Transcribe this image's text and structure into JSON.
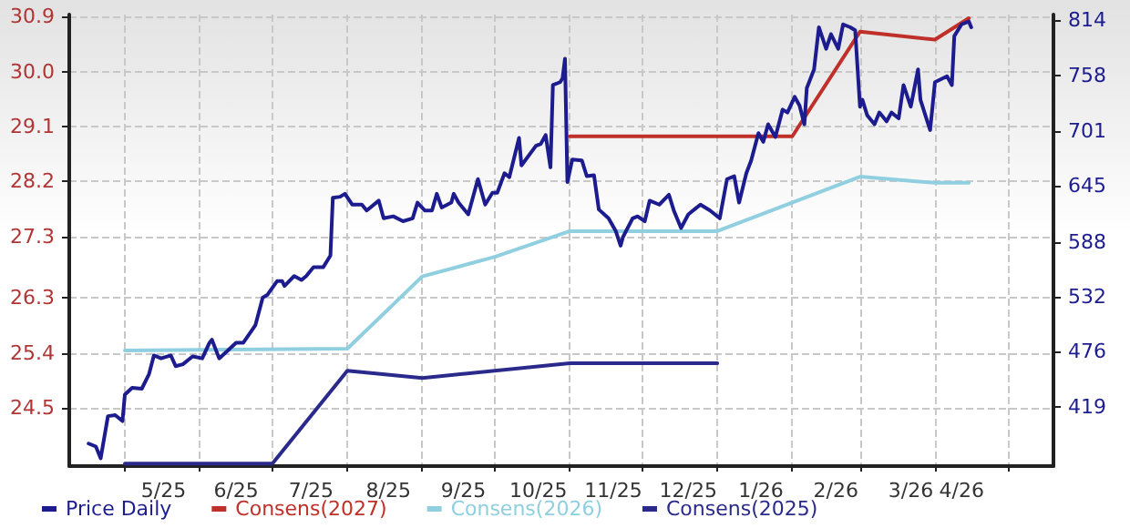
{
  "chart_data": {
    "type": "line",
    "xlim": [
      "2025-04-08",
      "2026-05-20"
    ],
    "xticks": [
      {
        "value": "2025-05-01",
        "label": null
      },
      {
        "value": "2025-05-17",
        "label": "5/25"
      },
      {
        "value": "2025-06-01",
        "label": null
      },
      {
        "value": "2025-06-16",
        "label": "6/25"
      },
      {
        "value": "2025-07-01",
        "label": null
      },
      {
        "value": "2025-07-17",
        "label": "7/25"
      },
      {
        "value": "2025-08-01",
        "label": null
      },
      {
        "value": "2025-08-18",
        "label": "8/25"
      },
      {
        "value": "2025-09-01",
        "label": null
      },
      {
        "value": "2025-09-18",
        "label": "9/25"
      },
      {
        "value": "2025-10-01",
        "label": null
      },
      {
        "value": "2025-10-19",
        "label": "10/25"
      },
      {
        "value": "2025-11-01",
        "label": null
      },
      {
        "value": "2025-11-19",
        "label": "11/25"
      },
      {
        "value": "2025-12-01",
        "label": null
      },
      {
        "value": "2025-12-20",
        "label": "12/25"
      },
      {
        "value": "2026-01-01",
        "label": null
      },
      {
        "value": "2026-01-19",
        "label": "1/26"
      },
      {
        "value": "2026-02-01",
        "label": null
      },
      {
        "value": "2026-02-19",
        "label": "2/26"
      },
      {
        "value": "2026-03-01",
        "label": null
      },
      {
        "value": "2026-03-22",
        "label": "3/26"
      },
      {
        "value": "2026-04-01",
        "label": null
      },
      {
        "value": "2026-04-12",
        "label": "4/26"
      },
      {
        "value": "2026-05-01",
        "label": null
      }
    ],
    "ylim": [
      23.55,
      30.93
    ],
    "yticks": [
      24.5,
      25.4,
      26.3,
      27.3,
      28.2,
      29.1,
      {
        "value": 30,
        "label": "30.0"
      },
      30.9
    ],
    "y2lim": [
      359,
      820
    ],
    "y2ticks": [
      419,
      476,
      532,
      588,
      645,
      701,
      758,
      814
    ],
    "grid": true,
    "legend": "bottom left",
    "marker": "none",
    "line_style": "solid",
    "series": [
      {
        "name": "Price Daily",
        "color": "#1c1c8f",
        "axis": "y2",
        "x": [
          "2025-04-16",
          "2025-04-19",
          "2025-04-21",
          "2025-04-24",
          "2025-04-27",
          "2025-04-30",
          "2025-05-01",
          "2025-05-04",
          "2025-05-08",
          "2025-05-11",
          "2025-05-13",
          "2025-05-16",
          "2025-05-20",
          "2025-05-22",
          "2025-05-25",
          "2025-05-29",
          "2025-06-02",
          "2025-06-05",
          "2025-06-06",
          "2025-06-09",
          "2025-06-13",
          "2025-06-16",
          "2025-06-19",
          "2025-06-24",
          "2025-06-27",
          "2025-06-29",
          "2025-07-03",
          "2025-07-05",
          "2025-07-06",
          "2025-07-10",
          "2025-07-13",
          "2025-07-15",
          "2025-07-18",
          "2025-07-22",
          "2025-07-25",
          "2025-07-26",
          "2025-07-29",
          "2025-07-31",
          "2025-08-03",
          "2025-08-07",
          "2025-08-09",
          "2025-08-14",
          "2025-08-16",
          "2025-08-20",
          "2025-08-24",
          "2025-08-28",
          "2025-08-30",
          "2025-09-02",
          "2025-09-05",
          "2025-09-07",
          "2025-09-09",
          "2025-09-13",
          "2025-09-14",
          "2025-09-16",
          "2025-09-20",
          "2025-09-24",
          "2025-09-27",
          "2025-09-30",
          "2025-10-02",
          "2025-10-05",
          "2025-10-07",
          "2025-10-11",
          "2025-10-12",
          "2025-10-18",
          "2025-10-20",
          "2025-10-22",
          "2025-10-24",
          "2025-10-25",
          "2025-10-28",
          "2025-10-29",
          "2025-10-30",
          "2025-10-31",
          "2025-11-02",
          "2025-11-06",
          "2025-11-08",
          "2025-11-11",
          "2025-11-13",
          "2025-11-17",
          "2025-11-20",
          "2025-11-22",
          "2025-11-23",
          "2025-11-27",
          "2025-11-29",
          "2025-12-02",
          "2025-12-04",
          "2025-12-08",
          "2025-12-12",
          "2025-12-14",
          "2025-12-17",
          "2025-12-20",
          "2025-12-25",
          "2025-12-29",
          "2026-01-02",
          "2026-01-05",
          "2026-01-08",
          "2026-01-10",
          "2026-01-13",
          "2026-01-15",
          "2026-01-18",
          "2026-01-20",
          "2026-01-22",
          "2026-01-25",
          "2026-01-28",
          "2026-01-30",
          "2026-02-02",
          "2026-02-04",
          "2026-02-06",
          "2026-02-07",
          "2026-02-10",
          "2026-02-12",
          "2026-02-15",
          "2026-02-17",
          "2026-02-20",
          "2026-02-22",
          "2026-02-25",
          "2026-02-27",
          "2026-03-01",
          "2026-03-02",
          "2026-03-04",
          "2026-03-07",
          "2026-03-09",
          "2026-03-12",
          "2026-03-14",
          "2026-03-17",
          "2026-03-19",
          "2026-03-22",
          "2026-03-25",
          "2026-03-26",
          "2026-03-30",
          "2026-04-01",
          "2026-04-06",
          "2026-04-08",
          "2026-04-09",
          "2026-04-12",
          "2026-04-15",
          "2026-04-16"
        ],
        "values": [
          382,
          379,
          367,
          410,
          411,
          405,
          432,
          439,
          438,
          453,
          472,
          469,
          472,
          461,
          463,
          471,
          469,
          485,
          488,
          469,
          478,
          485,
          485,
          503,
          531,
          534,
          548,
          548,
          543,
          553,
          549,
          553,
          562,
          562,
          574,
          633,
          634,
          637,
          626,
          626,
          620,
          630,
          612,
          614,
          609,
          612,
          628,
          620,
          620,
          637,
          623,
          628,
          637,
          628,
          616,
          652,
          626,
          638,
          638,
          658,
          654,
          694,
          666,
          686,
          688,
          697,
          664,
          748,
          751,
          755,
          775,
          649,
          672,
          671,
          655,
          656,
          621,
          612,
          599,
          584,
          593,
          612,
          614,
          609,
          630,
          626,
          636,
          620,
          602,
          616,
          626,
          620,
          612,
          652,
          655,
          628,
          658,
          671,
          699,
          690,
          708,
          695,
          723,
          720,
          736,
          727,
          708,
          745,
          764,
          807,
          785,
          800,
          785,
          810,
          807,
          804,
          726,
          733,
          717,
          708,
          720,
          711,
          720,
          714,
          748,
          726,
          764,
          733,
          702,
          751,
          757,
          748,
          798,
          810,
          813,
          807
        ]
      },
      {
        "name": "Consens(2027)",
        "color": "#c0302a",
        "axis": "y",
        "x": [
          "2025-11-01",
          "2026-02-01",
          "2026-03-01",
          "2026-04-01",
          "2026-04-15"
        ],
        "values": [
          28.94,
          28.94,
          30.65,
          30.52,
          30.87
        ]
      },
      {
        "name": "Consens(2026)",
        "color": "#90cfe0",
        "axis": "y",
        "x": [
          "2025-05-01",
          "2025-08-01",
          "2025-09-01",
          "2025-10-01",
          "2025-11-01",
          "2026-01-01",
          "2026-03-01",
          "2026-04-01",
          "2026-04-15"
        ],
        "values": [
          25.44,
          25.47,
          26.65,
          26.97,
          27.39,
          27.39,
          28.28,
          28.18,
          28.18
        ]
      },
      {
        "name": "Consens(2025)",
        "color": "#2a2a8c",
        "axis": "y",
        "x": [
          "2025-05-01",
          "2025-07-01",
          "2025-08-01",
          "2025-09-01",
          "2025-11-01",
          "2026-01-01"
        ],
        "values": [
          23.59,
          23.59,
          25.11,
          24.99,
          25.23,
          25.23
        ]
      }
    ]
  }
}
